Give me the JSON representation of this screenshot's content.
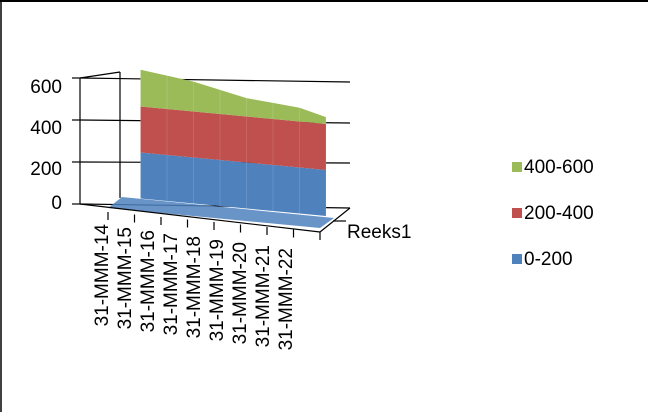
{
  "chart_data": {
    "type": "surface",
    "categories": [
      "31-MMM-14",
      "31-MMM-15",
      "31-MMM-16",
      "31-MMM-17",
      "31-MMM-18",
      "31-MMM-19",
      "31-MMM-20",
      "31-MMM-21",
      "31-MMM-22"
    ],
    "depth_series": [
      "Reeks1"
    ],
    "values": [
      0,
      560,
      545,
      530,
      505,
      480,
      470,
      460,
      430
    ],
    "zlim": [
      0,
      600
    ],
    "z_ticks": [
      "0",
      "200",
      "400",
      "600"
    ],
    "bands": [
      {
        "name": "400-600",
        "color": "#9bbb59"
      },
      {
        "name": "200-400",
        "color": "#c0504d"
      },
      {
        "name": "0-200",
        "color": "#4f81bd"
      }
    ],
    "legend_position": "right",
    "grid": true
  }
}
